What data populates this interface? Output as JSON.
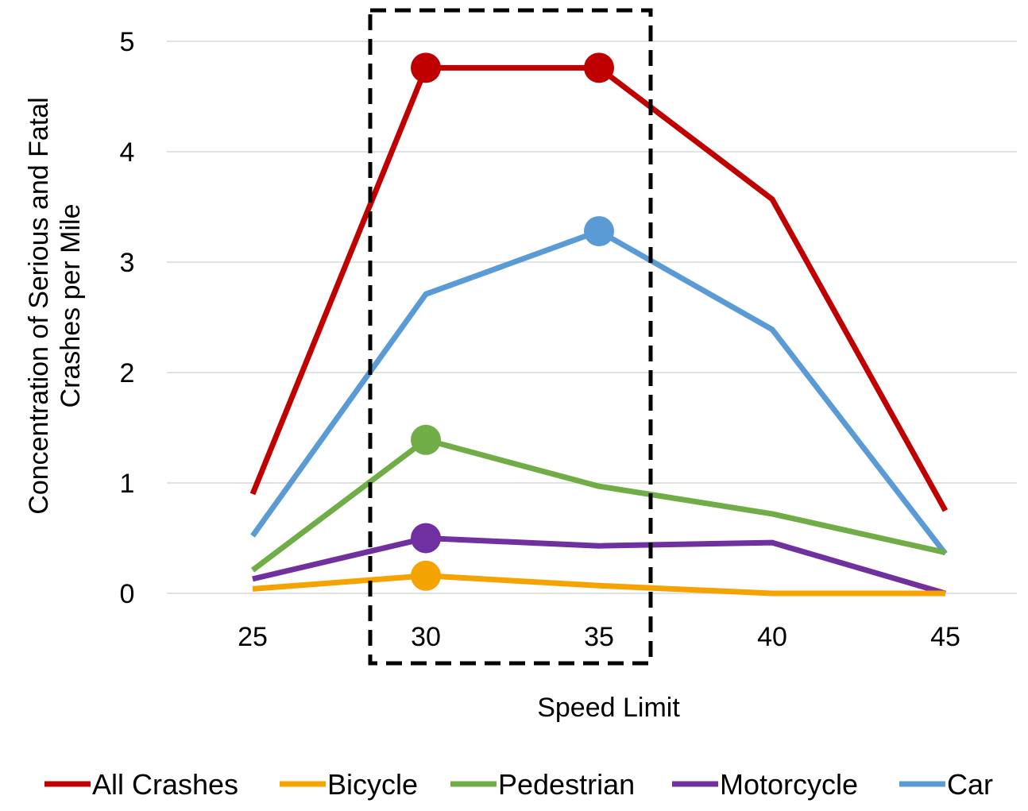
{
  "chart_data": {
    "type": "line",
    "xlabel": "Speed Limit",
    "ylabel_line1": "Concentration of Serious and Fatal",
    "ylabel_line2": "Crashes per Mile",
    "x": [
      25,
      30,
      35,
      40,
      45
    ],
    "x_tick_labels": [
      "25",
      "30",
      "35",
      "40",
      "45"
    ],
    "y_tick_labels": [
      "0",
      "1",
      "2",
      "3",
      "4",
      "5"
    ],
    "ylim": [
      0,
      5
    ],
    "grid": "horizontal",
    "legend_position": "bottom",
    "highlight_box_x_range": [
      30,
      35
    ],
    "series": [
      {
        "name": "All Crashes",
        "color": "#C00000",
        "values": [
          0.9,
          4.76,
          4.76,
          3.57,
          0.75
        ],
        "markers": [
          30,
          35
        ]
      },
      {
        "name": "Bicycle",
        "color": "#F5A300",
        "values": [
          0.04,
          0.16,
          0.07,
          0.0,
          0.0
        ],
        "markers": [
          30
        ]
      },
      {
        "name": "Pedestrian",
        "color": "#70AD47",
        "values": [
          0.21,
          1.39,
          0.97,
          0.72,
          0.37
        ],
        "markers": [
          30
        ]
      },
      {
        "name": "Motorcycle",
        "color": "#7030A0",
        "values": [
          0.13,
          0.5,
          0.43,
          0.46,
          0.0
        ],
        "markers": [
          30
        ]
      },
      {
        "name": "Car",
        "color": "#5B9BD5",
        "values": [
          0.52,
          2.71,
          3.28,
          2.39,
          0.36
        ],
        "markers": [
          35
        ]
      }
    ]
  }
}
